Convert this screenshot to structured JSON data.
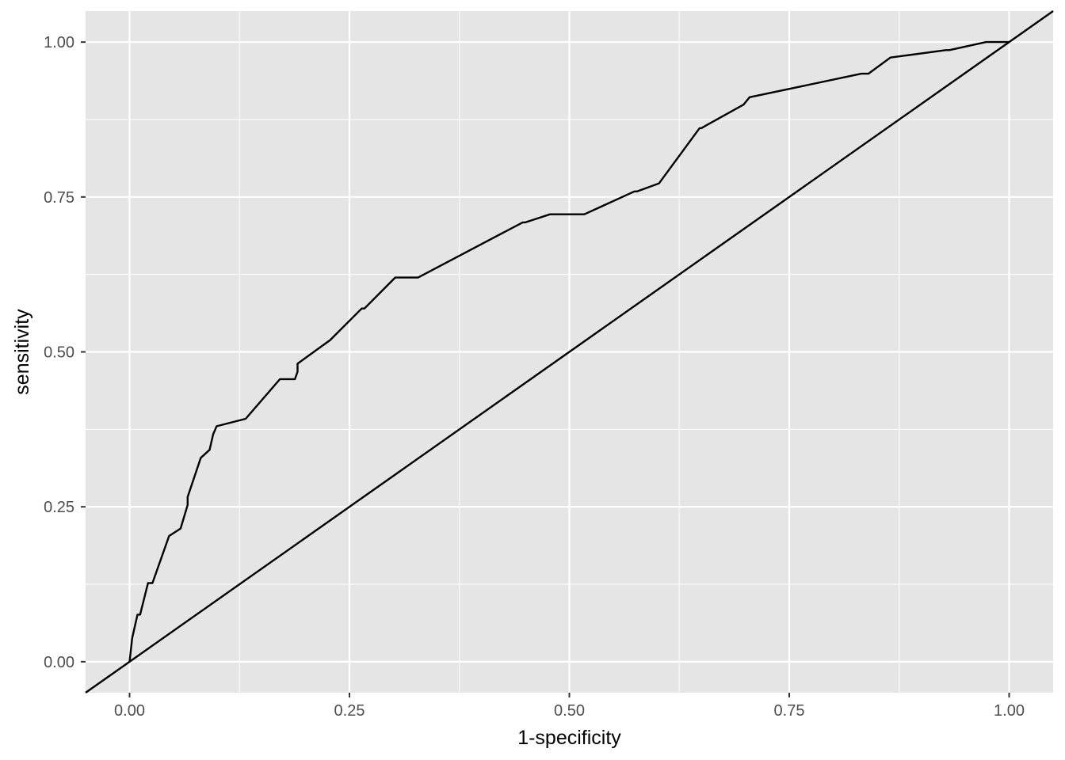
{
  "chart_data": {
    "type": "line",
    "title": "",
    "xlabel": "1-specificity",
    "ylabel": "sensitivity",
    "xlim": [
      -0.05,
      1.05
    ],
    "ylim": [
      -0.05,
      1.05
    ],
    "x_ticks": [
      0,
      0.25,
      0.5,
      0.75,
      1
    ],
    "x_tick_labels": [
      "0.00",
      "0.25",
      "0.50",
      "0.75",
      "1.00"
    ],
    "y_ticks": [
      0,
      0.25,
      0.5,
      0.75,
      1
    ],
    "y_tick_labels": [
      "0.00",
      "0.25",
      "0.50",
      "0.75",
      "1.00"
    ],
    "grid": true,
    "legend": "none",
    "colors": {
      "panel": "#e5e5e5",
      "grid": "#ffffff",
      "line": "#000000"
    },
    "series": [
      {
        "x": [
          0,
          0.003,
          0.009,
          0.012,
          0.021,
          0.026,
          0.045,
          0.058,
          0.066,
          0.066,
          0.081,
          0.091,
          0.095,
          0.099,
          0.132,
          0.171,
          0.188,
          0.191,
          0.191,
          0.228,
          0.264,
          0.267,
          0.302,
          0.328,
          0.447,
          0.45,
          0.478,
          0.517,
          0.574,
          0.577,
          0.602,
          0.648,
          0.65,
          0.698,
          0.705,
          0.832,
          0.84,
          0.865,
          0.928,
          0.932,
          0.974,
          1
        ],
        "y": [
          0,
          0.038,
          0.076,
          0.076,
          0.127,
          0.127,
          0.203,
          0.215,
          0.253,
          0.266,
          0.329,
          0.342,
          0.367,
          0.38,
          0.392,
          0.456,
          0.456,
          0.468,
          0.481,
          0.519,
          0.57,
          0.57,
          0.62,
          0.62,
          0.709,
          0.709,
          0.722,
          0.722,
          0.759,
          0.759,
          0.772,
          0.861,
          0.861,
          0.899,
          0.911,
          0.949,
          0.949,
          0.975,
          0.987,
          0.987,
          1,
          1
        ]
      },
      {
        "x": [
          -0.05,
          1.05
        ],
        "y": [
          -0.05,
          1.05
        ]
      }
    ]
  }
}
